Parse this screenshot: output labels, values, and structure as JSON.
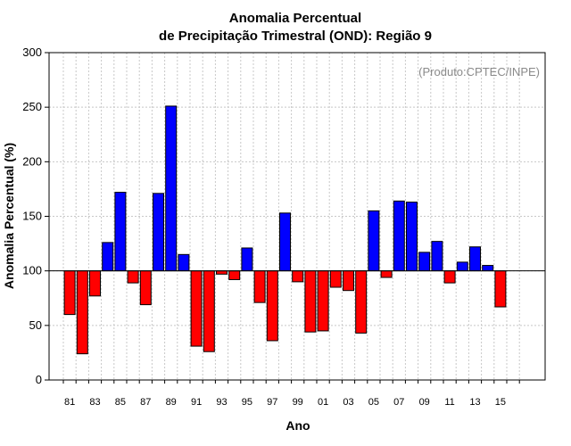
{
  "chart_data": {
    "type": "bar",
    "title": [
      "Anomalia Percentual",
      "de Precipitação Trimestral (OND): Região 9"
    ],
    "credit": "(Produto:CPTEC/INPE)",
    "xlabel": "Ano",
    "ylabel": "Anomalia Percentual (%)",
    "ylim": [
      0,
      300
    ],
    "yticks": [
      0,
      50,
      100,
      150,
      200,
      250,
      300
    ],
    "baseline": 100,
    "grid": true,
    "colors": {
      "above": "#0000ff",
      "below": "#ff0000",
      "edge": "#000000",
      "grid": "#c8c8c8"
    },
    "categories": [
      "81",
      "82",
      "83",
      "84",
      "85",
      "86",
      "87",
      "88",
      "89",
      "90",
      "91",
      "92",
      "93",
      "94",
      "95",
      "96",
      "97",
      "98",
      "99",
      "00",
      "01",
      "02",
      "03",
      "04",
      "05",
      "06",
      "07",
      "08",
      "09",
      "10",
      "11",
      "12",
      "13",
      "14",
      "15",
      "16"
    ],
    "tick_labels": [
      "81",
      "83",
      "85",
      "87",
      "89",
      "91",
      "93",
      "95",
      "97",
      "99",
      "01",
      "03",
      "05",
      "07",
      "09",
      "11",
      "13",
      "15"
    ],
    "values": [
      60,
      24,
      77,
      126,
      172,
      89,
      69,
      171,
      251,
      115,
      31,
      26,
      97,
      92,
      121,
      71,
      36,
      153,
      90,
      44,
      45,
      85,
      82,
      43,
      155,
      94,
      164,
      163,
      117,
      127,
      89,
      108,
      122,
      105,
      67,
      null
    ]
  }
}
